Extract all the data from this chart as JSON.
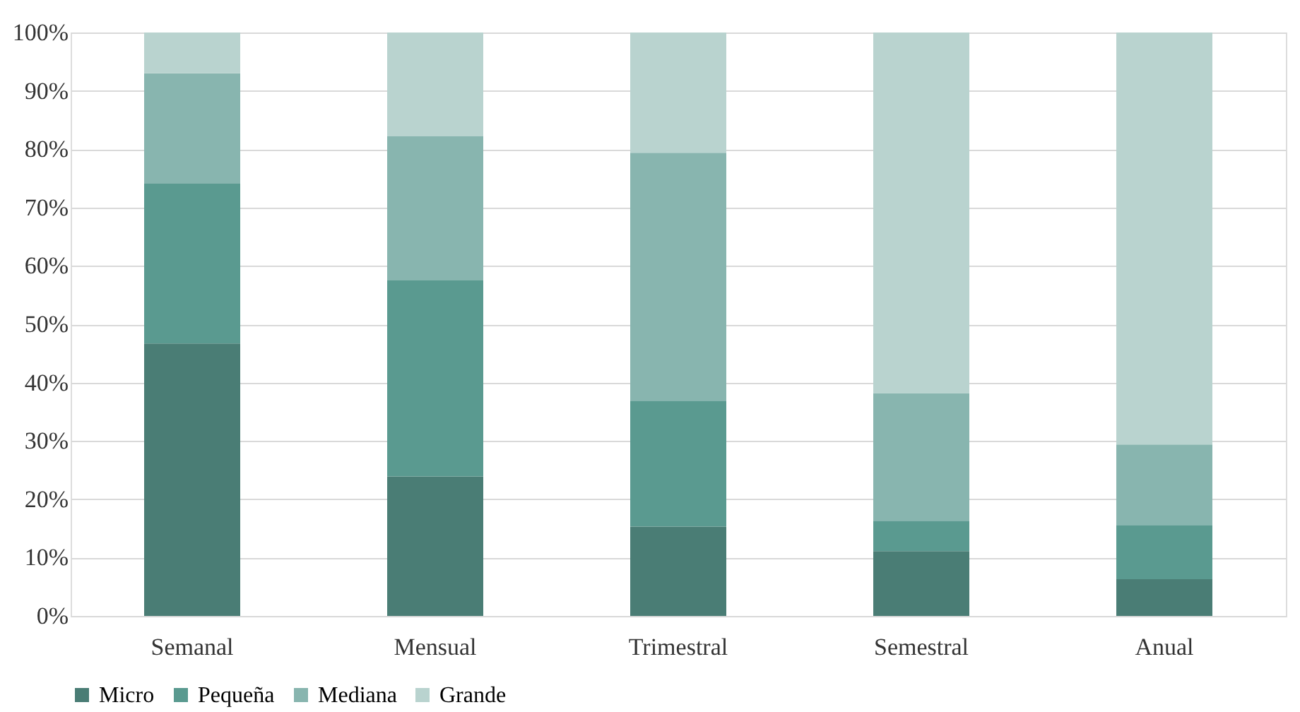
{
  "chart_data": {
    "type": "bar",
    "stacked": true,
    "categories": [
      "Semanal",
      "Mensual",
      "Trimestral",
      "Semestral",
      "Anual"
    ],
    "series": [
      {
        "name": "Micro",
        "color": "#4a7d75",
        "values": [
          46.7,
          23.9,
          15.3,
          11.1,
          6.3
        ]
      },
      {
        "name": "Pequeña",
        "color": "#5a9a90",
        "values": [
          27.4,
          33.6,
          21.6,
          5.2,
          9.3
        ]
      },
      {
        "name": "Mediana",
        "color": "#88b5af",
        "values": [
          18.9,
          24.7,
          42.5,
          21.9,
          13.8
        ]
      },
      {
        "name": "Grande",
        "color": "#b9d3cf",
        "values": [
          7.0,
          17.8,
          20.6,
          61.8,
          70.6
        ]
      }
    ],
    "ylim": [
      0,
      100
    ],
    "yticks": [
      {
        "value": 0,
        "label": "0%"
      },
      {
        "value": 10,
        "label": "10%"
      },
      {
        "value": 20,
        "label": "20%"
      },
      {
        "value": 30,
        "label": "30%"
      },
      {
        "value": 40,
        "label": "40%"
      },
      {
        "value": 50,
        "label": "50%"
      },
      {
        "value": 60,
        "label": "60%"
      },
      {
        "value": 70,
        "label": "70%"
      },
      {
        "value": 80,
        "label": "80%"
      },
      {
        "value": 90,
        "label": "90%"
      },
      {
        "value": 100,
        "label": "100%"
      }
    ],
    "grid": "y",
    "legend": "bottom"
  }
}
